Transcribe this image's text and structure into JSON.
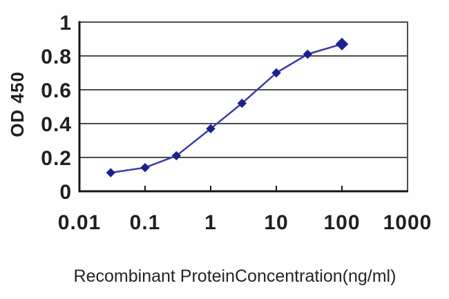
{
  "figure": {
    "background": "#fefefe",
    "colors": {
      "line": "#3a3aa6",
      "marker": "#1e1e8e",
      "grid": "#4d4d4d",
      "axis": "#161616",
      "text": "#1f1f1f"
    }
  },
  "chart_data": {
    "type": "line",
    "title": "",
    "xlabel": "Recombinant ProteinConcentration(ng/ml)",
    "ylabel": "OD 450",
    "x_scale": "log",
    "xlim": [
      0.01,
      1000
    ],
    "ylim": [
      0,
      1
    ],
    "grid": "horizontal",
    "legend": "none",
    "marker": "diamond",
    "x": [
      0.03,
      0.1,
      0.3,
      1,
      3,
      10,
      30,
      100
    ],
    "y": [
      0.11,
      0.14,
      0.21,
      0.37,
      0.52,
      0.7,
      0.81,
      0.87
    ],
    "x_ticks": [
      {
        "value": 0.01,
        "label": "0.01"
      },
      {
        "value": 0.1,
        "label": "0.1"
      },
      {
        "value": 1,
        "label": "1"
      },
      {
        "value": 10,
        "label": "10"
      },
      {
        "value": 100,
        "label": "100"
      },
      {
        "value": 1000,
        "label": "1000"
      }
    ],
    "y_ticks": [
      {
        "value": 0,
        "label": "0"
      },
      {
        "value": 0.2,
        "label": "0.2"
      },
      {
        "value": 0.4,
        "label": "0.4"
      },
      {
        "value": 0.6,
        "label": "0.6"
      },
      {
        "value": 0.8,
        "label": "0.8"
      },
      {
        "value": 1,
        "label": "1"
      }
    ]
  }
}
